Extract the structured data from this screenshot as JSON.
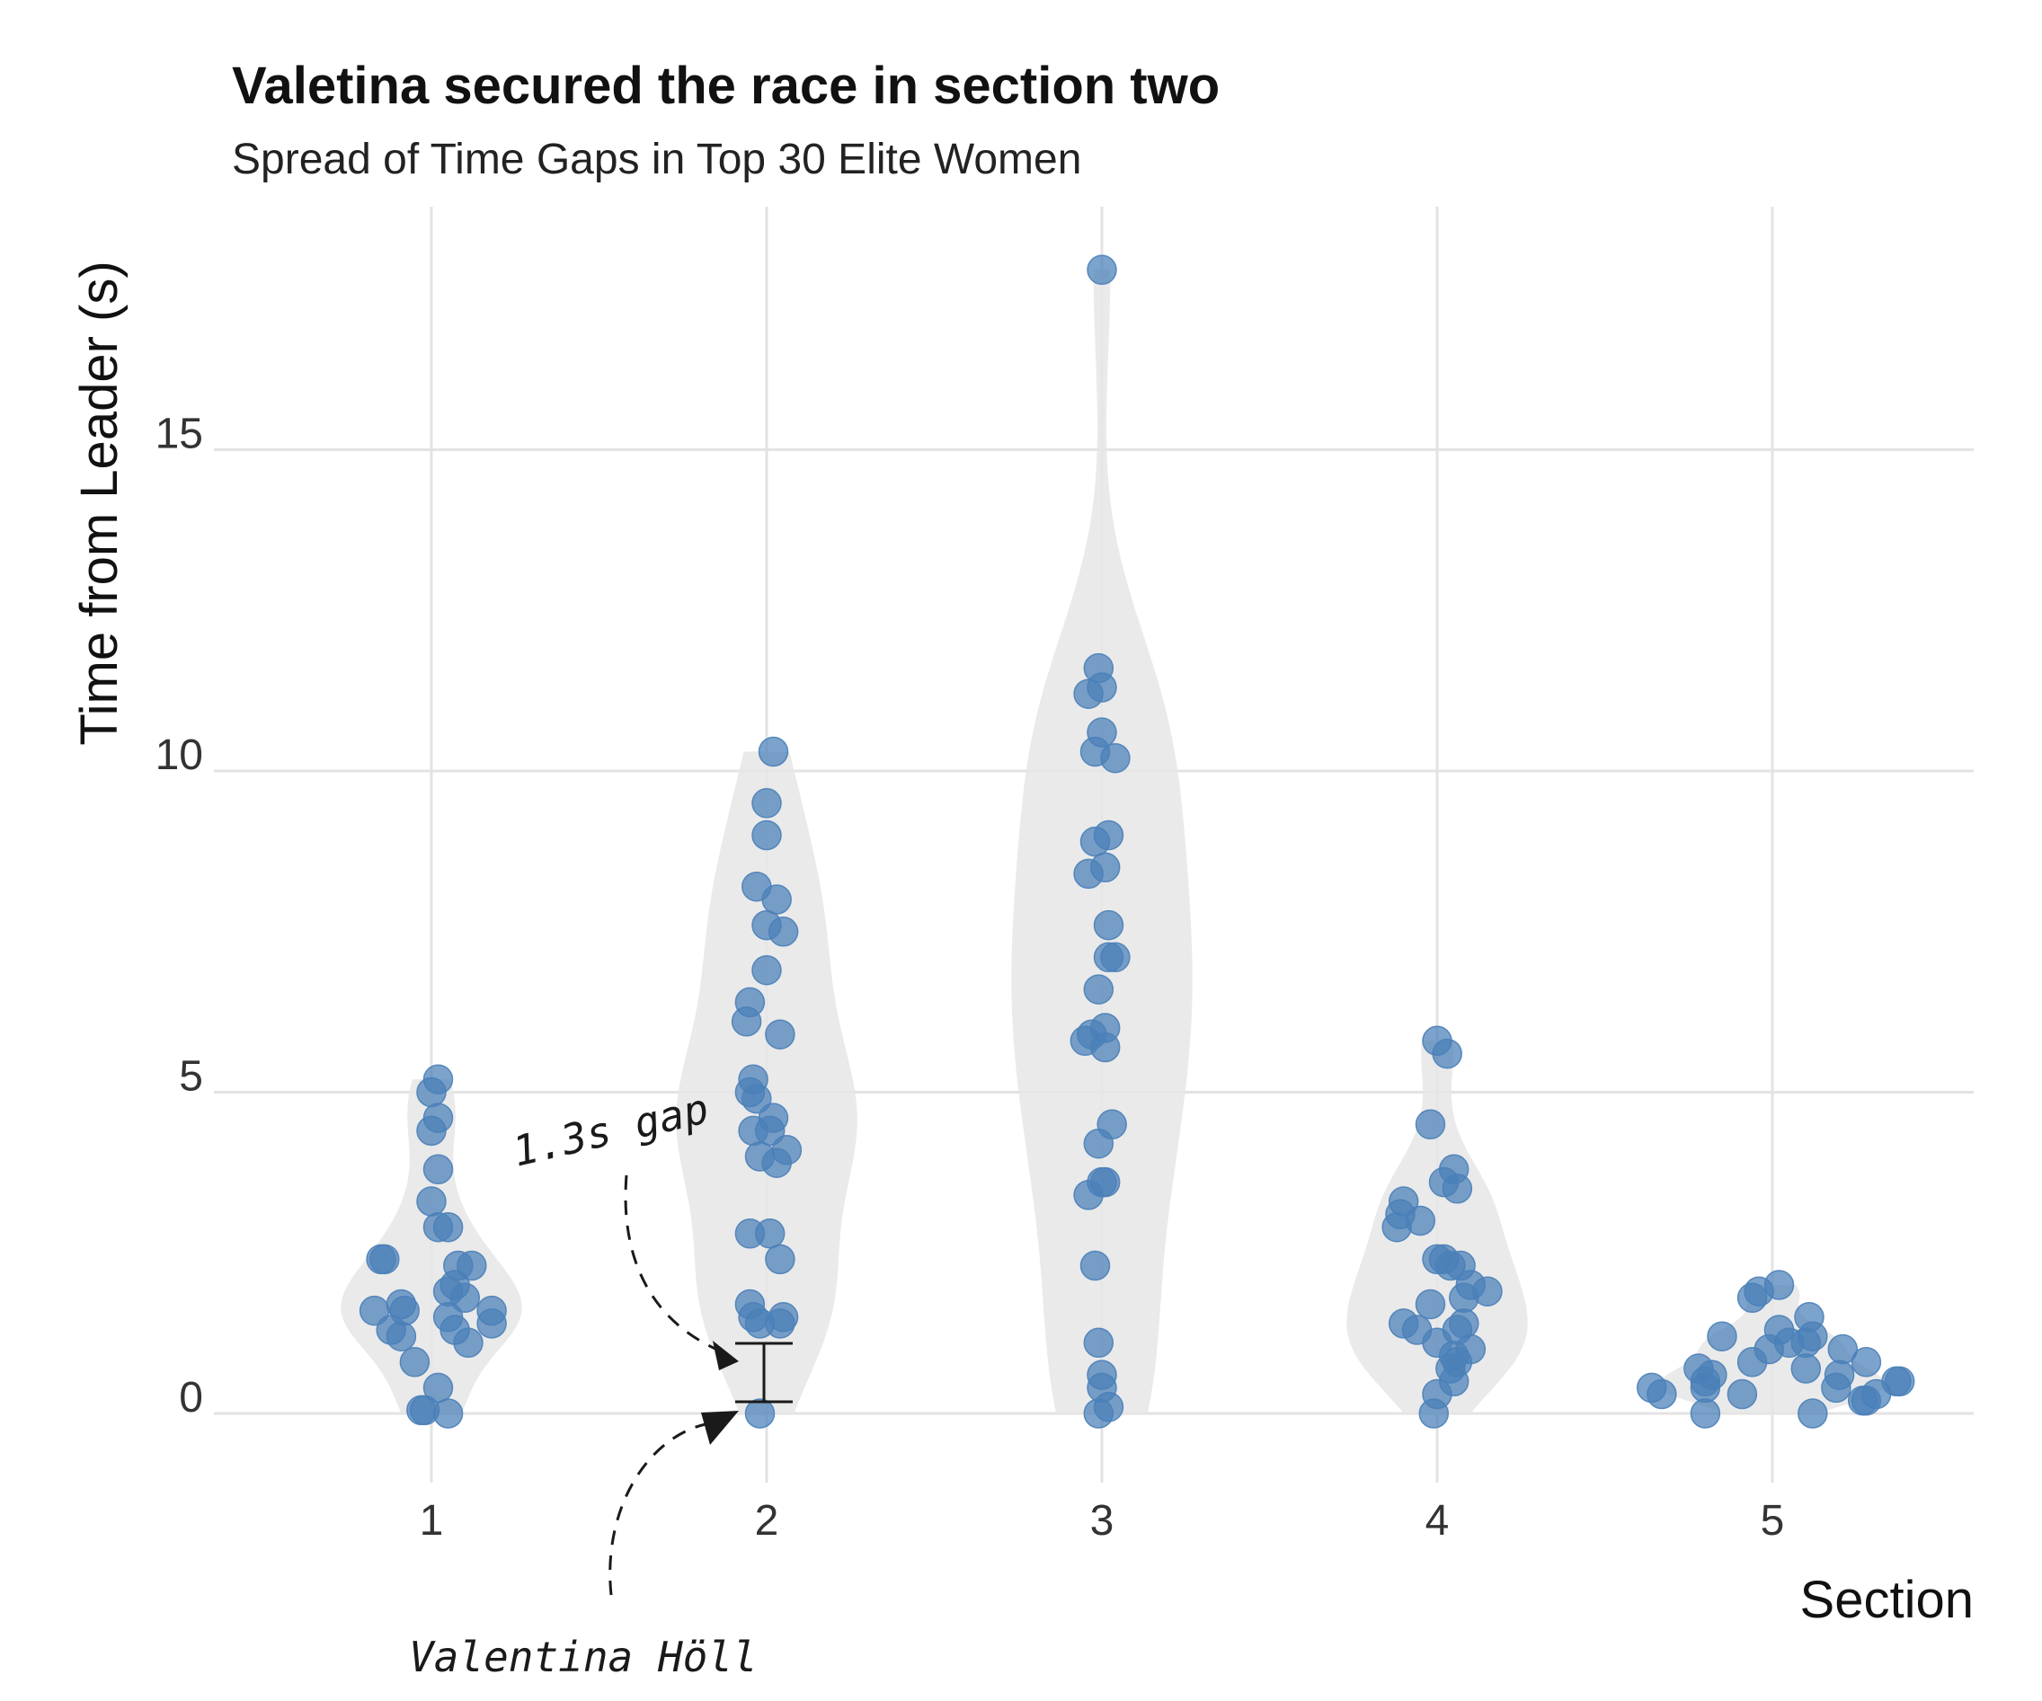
{
  "chart_data": {
    "type": "scatter",
    "title": "Valetina secured the race in section two",
    "subtitle": "Spread of Time Gaps in Top 30 Elite Women",
    "xlabel": "Section",
    "ylabel": "Time from Leader (s)",
    "categories": [
      "1",
      "2",
      "3",
      "4",
      "5"
    ],
    "yticks": [
      "0",
      "5",
      "10",
      "15"
    ],
    "ylim": [
      -1.2,
      18.8
    ],
    "grid": true,
    "point_color": "#4a7fb8",
    "violin_color": "#e6e6e6",
    "series": [
      {
        "category": "1",
        "values": [
          5.2,
          5.0,
          4.6,
          4.4,
          3.8,
          3.3,
          2.9,
          2.9,
          2.4,
          2.4,
          2.3,
          2.3,
          2.0,
          1.9,
          1.8,
          1.7,
          1.6,
          1.6,
          1.6,
          1.5,
          1.4,
          1.3,
          1.3,
          1.2,
          1.1,
          0.8,
          0.4,
          0.05,
          0.05,
          0.0
        ],
        "jitter": [
          0.02,
          0.0,
          0.02,
          0.0,
          0.02,
          0.0,
          0.02,
          0.05,
          -0.15,
          -0.14,
          0.12,
          0.08,
          0.07,
          0.05,
          0.1,
          -0.09,
          0.18,
          -0.17,
          -0.08,
          0.05,
          0.18,
          -0.12,
          0.07,
          -0.09,
          0.11,
          -0.05,
          0.02,
          -0.03,
          -0.02,
          0.05
        ]
      },
      {
        "category": "2",
        "values": [
          10.3,
          9.5,
          9.0,
          8.2,
          8.0,
          7.6,
          7.5,
          6.9,
          6.4,
          6.1,
          5.9,
          5.2,
          5.0,
          4.9,
          4.6,
          4.4,
          4.4,
          4.1,
          4.0,
          3.9,
          2.8,
          2.8,
          2.4,
          1.7,
          1.5,
          1.5,
          1.4,
          1.4,
          0.0
        ],
        "jitter": [
          0.02,
          0.0,
          0.0,
          -0.03,
          0.03,
          0.0,
          0.05,
          0.0,
          -0.05,
          -0.06,
          0.04,
          -0.04,
          -0.05,
          -0.03,
          0.02,
          -0.04,
          0.01,
          0.06,
          -0.02,
          0.03,
          -0.05,
          0.01,
          0.04,
          -0.05,
          -0.04,
          0.05,
          -0.02,
          0.04,
          -0.02
        ]
      },
      {
        "category": "3",
        "values": [
          17.8,
          11.6,
          11.3,
          11.2,
          10.6,
          10.3,
          10.2,
          9.0,
          8.9,
          8.5,
          8.4,
          7.6,
          7.1,
          7.1,
          6.6,
          6.0,
          5.9,
          5.8,
          5.7,
          4.5,
          4.2,
          3.6,
          3.6,
          3.4,
          2.3,
          1.1,
          0.6,
          0.4,
          0.1,
          0.0
        ],
        "jitter": [
          0.0,
          -0.01,
          0.0,
          -0.04,
          0.0,
          -0.02,
          0.04,
          0.02,
          -0.02,
          0.01,
          -0.04,
          0.02,
          0.02,
          0.04,
          -0.01,
          0.01,
          -0.03,
          -0.05,
          0.01,
          0.03,
          -0.01,
          0.0,
          0.01,
          -0.04,
          -0.02,
          -0.01,
          0.0,
          0.0,
          0.02,
          -0.01
        ]
      },
      {
        "category": "4",
        "values": [
          5.8,
          5.6,
          4.5,
          3.8,
          3.6,
          3.5,
          3.3,
          3.1,
          3.0,
          2.9,
          2.4,
          2.4,
          2.3,
          2.3,
          2.0,
          1.9,
          1.8,
          1.7,
          1.4,
          1.4,
          1.3,
          1.3,
          1.1,
          1.0,
          0.9,
          0.8,
          0.7,
          0.5,
          0.3,
          0.0
        ],
        "jitter": [
          0.0,
          0.03,
          -0.02,
          0.05,
          0.02,
          0.06,
          -0.1,
          -0.11,
          -0.05,
          -0.12,
          0.0,
          0.02,
          0.07,
          0.04,
          0.1,
          0.15,
          0.08,
          -0.02,
          -0.1,
          0.08,
          -0.06,
          0.06,
          0.0,
          0.1,
          0.05,
          0.06,
          0.04,
          0.05,
          0.0,
          -0.01
        ]
      },
      {
        "category": "5",
        "values": [
          2.0,
          1.9,
          1.8,
          1.5,
          1.3,
          1.2,
          1.2,
          1.1,
          1.1,
          1.0,
          1.0,
          0.8,
          0.8,
          0.7,
          0.7,
          0.6,
          0.6,
          0.5,
          0.5,
          0.5,
          0.4,
          0.4,
          0.4,
          0.3,
          0.3,
          0.3,
          0.2,
          0.2,
          0.0,
          0.0
        ],
        "jitter": [
          0.02,
          -0.04,
          -0.06,
          0.11,
          0.02,
          -0.15,
          0.12,
          0.05,
          0.1,
          -0.01,
          0.21,
          -0.06,
          0.28,
          -0.22,
          0.1,
          0.2,
          -0.18,
          0.38,
          0.37,
          -0.2,
          -0.36,
          0.19,
          -0.2,
          -0.33,
          0.31,
          -0.09,
          0.28,
          0.27,
          -0.2,
          0.12
        ]
      }
    ],
    "annotations": [
      {
        "text": "1.3s gap"
      },
      {
        "text": "Valentina Höll"
      }
    ]
  }
}
